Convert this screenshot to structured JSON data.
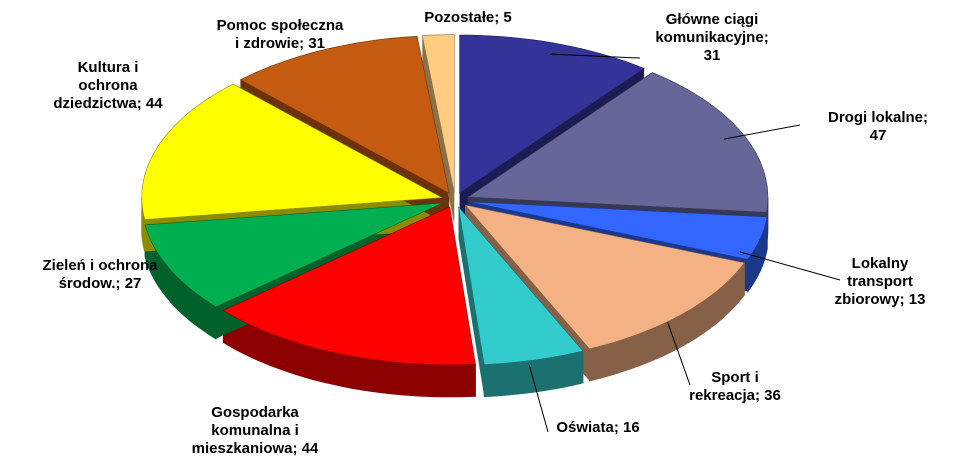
{
  "chart_data": {
    "type": "pie",
    "values": [
      31,
      47,
      13,
      36,
      16,
      44,
      27,
      44,
      31,
      5
    ],
    "value_labels": [
      "Główne ciągi komunikacyjne; 31",
      "Drogi lokalne; 47",
      "Lokalny transport zbiorowy; 13",
      "Sport i rekreacja; 36",
      "Oświata; 16",
      "Gospodarka komunalna i mieszkaniowa; 44",
      "Zieleń i ochrona środow.; 27",
      "Kultura i ochrona dziedzictwa; 44",
      "Pomoc społeczna i zdrowie; 31",
      "Pozostałe; 5"
    ],
    "colors": [
      "#333399",
      "#666699",
      "#3366ff",
      "#f4b183",
      "#33cccc",
      "#ff0000",
      "#00b050",
      "#ffff00",
      "#c55a11",
      "#ffcc80"
    ]
  }
}
